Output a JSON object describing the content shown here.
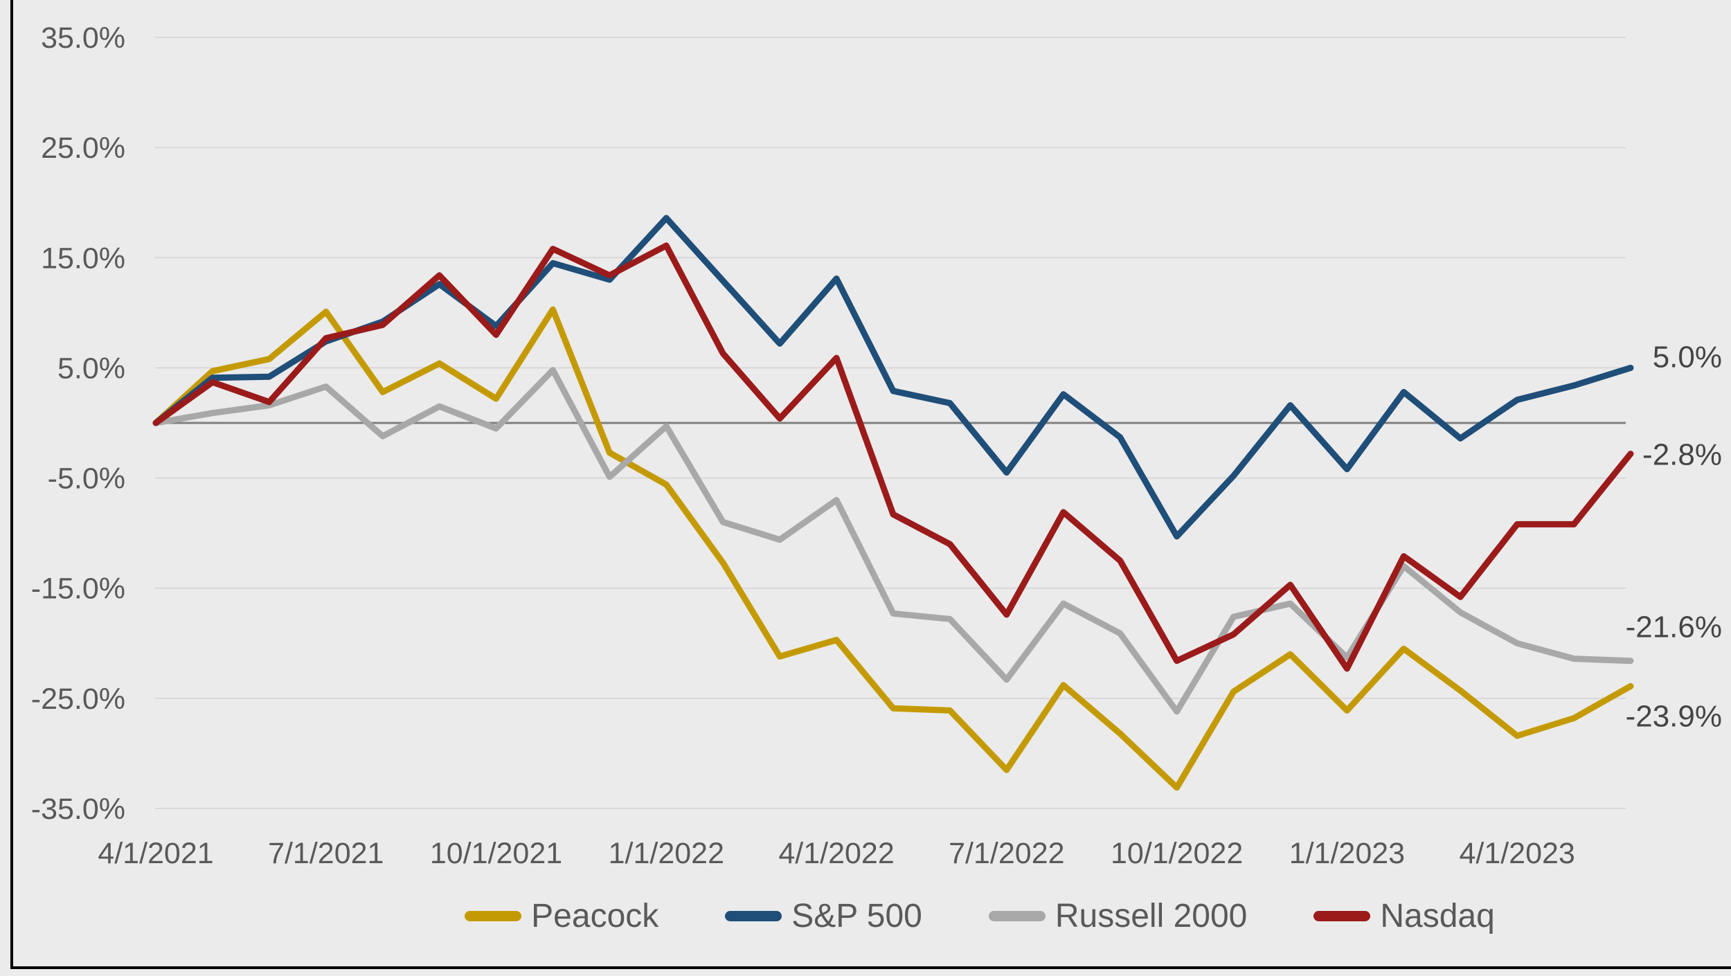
{
  "chart_data": {
    "type": "line",
    "title": "",
    "xlabel": "",
    "ylabel": "",
    "grid": true,
    "legend_position": "bottom",
    "background_color": "#ebebeb",
    "gridline_color": "#d8d8d8",
    "zero_line_color": "#7f7f7f",
    "axis_text_color": "#595959",
    "x": [
      "4/1/2021",
      "5/1/2021",
      "6/1/2021",
      "7/1/2021",
      "8/1/2021",
      "9/1/2021",
      "10/1/2021",
      "11/1/2021",
      "12/1/2021",
      "1/1/2022",
      "2/1/2022",
      "3/1/2022",
      "4/1/2022",
      "5/1/2022",
      "6/1/2022",
      "7/1/2022",
      "8/1/2022",
      "9/1/2022",
      "10/1/2022",
      "11/1/2022",
      "12/1/2022",
      "1/1/2023",
      "2/1/2023",
      "3/1/2023",
      "4/1/2023",
      "5/1/2023",
      "6/1/2023"
    ],
    "x_tick_indices": [
      0,
      3,
      6,
      9,
      12,
      15,
      18,
      21,
      24
    ],
    "x_tick_labels": [
      "4/1/2021",
      "7/1/2021",
      "10/1/2021",
      "1/1/2022",
      "4/1/2022",
      "7/1/2022",
      "10/1/2022",
      "1/1/2023",
      "4/1/2023"
    ],
    "y_tick_values": [
      35,
      25,
      15,
      5,
      -5,
      -15,
      -25,
      -35
    ],
    "y_tick_labels": [
      "35.0%",
      "25.0%",
      "15.0%",
      "5.0%",
      "-5.0%",
      "-15.0%",
      "-25.0%",
      "-35.0%"
    ],
    "ylim": [
      -37,
      37
    ],
    "series": [
      {
        "name": "Peacock",
        "color": "#c49a04",
        "end_label": "-23.9%",
        "values": [
          0.0,
          4.7,
          5.8,
          10.1,
          2.8,
          5.4,
          2.2,
          10.3,
          -2.7,
          -5.6,
          -12.7,
          -21.2,
          -19.7,
          -25.9,
          -26.1,
          -31.5,
          -23.8,
          -28.2,
          -33.1,
          -24.4,
          -21.0,
          -26.1,
          -20.5,
          -24.3,
          -28.4,
          -26.8,
          -23.9
        ]
      },
      {
        "name": "S&P 500",
        "color": "#1f4e79",
        "end_label": "5.0%",
        "values": [
          0.0,
          4.1,
          4.2,
          7.4,
          9.2,
          12.6,
          8.8,
          14.5,
          13.0,
          18.6,
          12.9,
          7.2,
          13.1,
          2.9,
          1.8,
          -4.5,
          2.6,
          -1.3,
          -10.3,
          -4.8,
          1.6,
          -4.2,
          2.8,
          -1.4,
          2.1,
          3.4,
          5.0
        ]
      },
      {
        "name": "Russell 2000",
        "color": "#a8a8a8",
        "end_label": "-21.6%",
        "values": [
          0.0,
          0.9,
          1.6,
          3.3,
          -1.2,
          1.5,
          -0.5,
          4.8,
          -4.9,
          -0.3,
          -9.0,
          -10.6,
          -7.0,
          -17.3,
          -17.8,
          -23.3,
          -16.4,
          -19.1,
          -26.2,
          -17.6,
          -16.4,
          -21.3,
          -13.0,
          -17.2,
          -20.0,
          -21.4,
          -21.6
        ]
      },
      {
        "name": "Nasdaq",
        "color": "#9b1b1b",
        "end_label": "-2.8%",
        "values": [
          0.0,
          3.7,
          1.9,
          7.7,
          8.9,
          13.4,
          8.0,
          15.8,
          13.4,
          16.1,
          6.3,
          0.4,
          5.9,
          -8.3,
          -11.0,
          -17.4,
          -8.1,
          -12.5,
          -21.6,
          -19.2,
          -14.7,
          -22.3,
          -12.1,
          -15.8,
          -9.2,
          -9.2,
          -2.8
        ]
      }
    ]
  }
}
